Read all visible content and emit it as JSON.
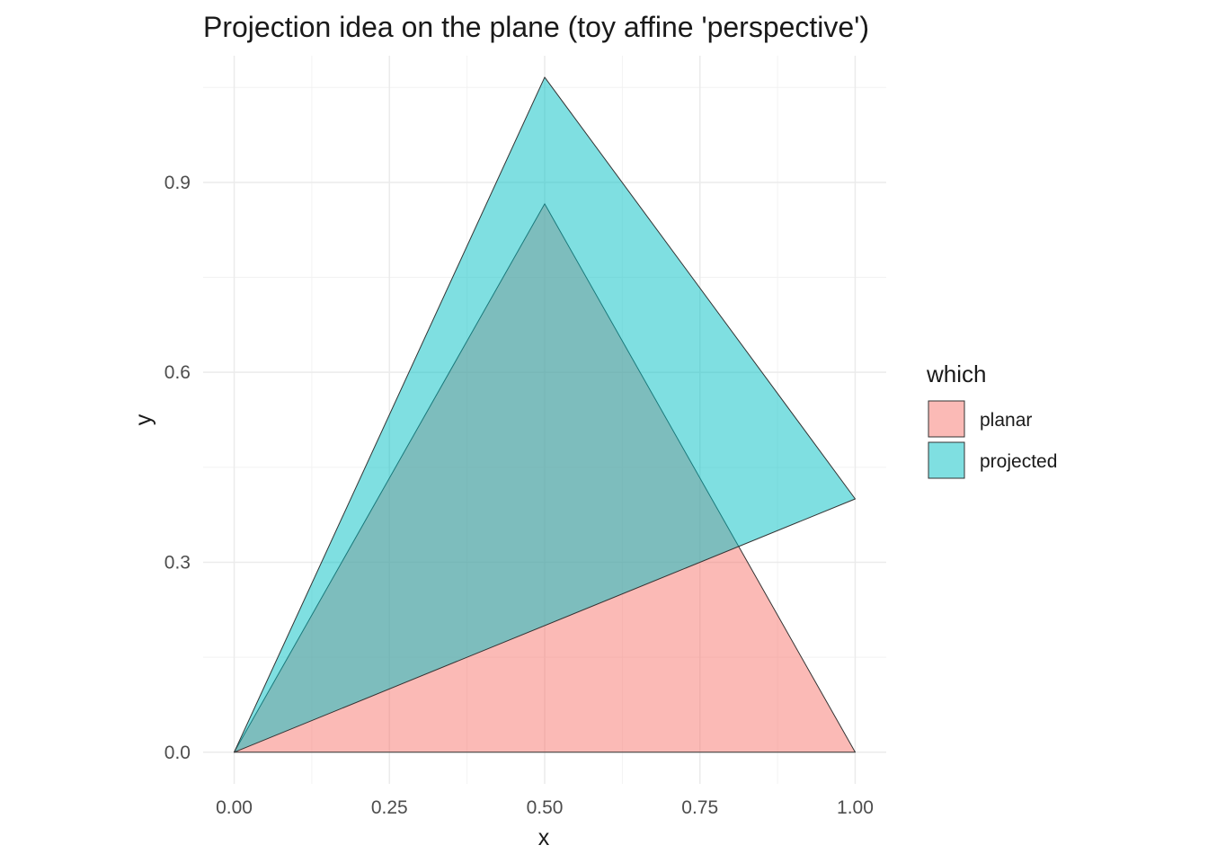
{
  "chart_data": {
    "type": "area",
    "title": "Projection idea on the plane (toy affine 'perspective')",
    "xlabel": "x",
    "ylabel": "y",
    "xlim": [
      -0.05,
      1.05
    ],
    "ylim": [
      -0.05,
      1.1
    ],
    "x_ticks": [
      0,
      0.25,
      0.5,
      0.75,
      1
    ],
    "x_tick_labels": [
      "0.00",
      "0.25",
      "0.50",
      "0.75",
      "1.00"
    ],
    "y_ticks": [
      0,
      0.3,
      0.6,
      0.9
    ],
    "y_tick_labels": [
      "0.0",
      "0.3",
      "0.6",
      "0.9"
    ],
    "x_minor": [
      0.125,
      0.375,
      0.625,
      0.875
    ],
    "y_minor": [
      0.15,
      0.45,
      0.75,
      1.05
    ],
    "grid": true,
    "legend": {
      "title": "which",
      "position": "right"
    },
    "series": [
      {
        "name": "planar",
        "color": "#F8766D",
        "opacity": 0.5,
        "points": [
          [
            0,
            0
          ],
          [
            1,
            0
          ],
          [
            0.5,
            0.866
          ]
        ]
      },
      {
        "name": "projected",
        "color": "#00BFC4",
        "opacity": 0.5,
        "points": [
          [
            0,
            0
          ],
          [
            1,
            0.4
          ],
          [
            0.5,
            1.066
          ]
        ]
      }
    ]
  }
}
